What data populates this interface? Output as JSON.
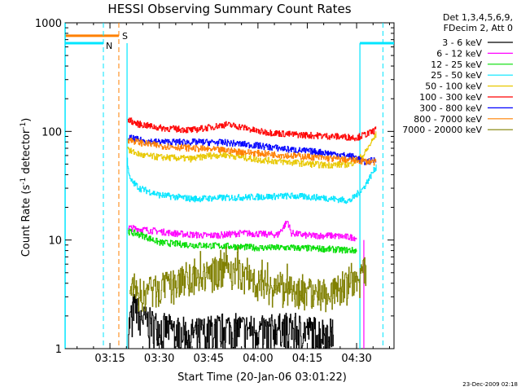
{
  "chart_data": {
    "type": "line",
    "title": "HESSI Observing Summary Count Rates",
    "xlabel": "Start Time (20-Jan-06 03:01:22)",
    "ylabel_main": "Count Rate (s",
    "ylabel_sup1": "-1",
    "ylabel_mid": " detector",
    "ylabel_sup2": "-1",
    "ylabel_end": ")",
    "x_ticks": [
      "03:15",
      "03:30",
      "03:45",
      "04:00",
      "04:15",
      "04:30"
    ],
    "x_tick_minutes": [
      15,
      30,
      45,
      60,
      75,
      90
    ],
    "x_range_minutes": [
      1.37,
      101.37
    ],
    "y_scale": "log",
    "y_range": [
      1,
      1000
    ],
    "y_ticks": [
      "1",
      "10",
      "100",
      "1000"
    ],
    "y_tick_values": [
      1,
      10,
      100,
      1000
    ],
    "legend_header": [
      "Det 1,3,4,5,6,9,",
      "FDecim 2, Att 0"
    ],
    "series": [
      {
        "name": "3 - 6 keV",
        "color": "#000000",
        "noisy": true,
        "points": [
          [
            20.5,
            1.5
          ],
          [
            22,
            2.5
          ],
          [
            25,
            1.9
          ],
          [
            30,
            1.6
          ],
          [
            40,
            1.4
          ],
          [
            50,
            1.6
          ],
          [
            60,
            1.5
          ],
          [
            70,
            1.6
          ],
          [
            75,
            1.5
          ],
          [
            83,
            1.4
          ]
        ]
      },
      {
        "name": "6 - 12 keV",
        "color": "#ff00ff",
        "points": [
          [
            20.5,
            13
          ],
          [
            25,
            12.5
          ],
          [
            30,
            12
          ],
          [
            35,
            11.5
          ],
          [
            40,
            11.2
          ],
          [
            45,
            11
          ],
          [
            50,
            11.2
          ],
          [
            55,
            11.6
          ],
          [
            60,
            11.4
          ],
          [
            66,
            11.2
          ],
          [
            69,
            15
          ],
          [
            70,
            11.6
          ],
          [
            75,
            11
          ],
          [
            82,
            11
          ],
          [
            90,
            10.5
          ]
        ]
      },
      {
        "name": "12 - 25 keV",
        "color": "#00dd00",
        "points": [
          [
            20.5,
            12
          ],
          [
            25,
            11
          ],
          [
            30,
            9.5
          ],
          [
            40,
            9
          ],
          [
            50,
            8.8
          ],
          [
            60,
            8.5
          ],
          [
            70,
            8.5
          ],
          [
            80,
            8.3
          ],
          [
            90,
            8
          ]
        ]
      },
      {
        "name": "25 - 50 keV",
        "color": "#00e5ff",
        "points": [
          [
            20.2,
            55
          ],
          [
            21,
            36
          ],
          [
            24,
            30
          ],
          [
            30,
            26
          ],
          [
            40,
            24
          ],
          [
            50,
            24.5
          ],
          [
            60,
            25
          ],
          [
            70,
            25.5
          ],
          [
            80,
            24.5
          ],
          [
            88,
            23
          ],
          [
            92,
            30
          ],
          [
            96,
            48
          ]
        ]
      },
      {
        "name": "50 - 100 keV",
        "color": "#e8c800",
        "points": [
          [
            20.3,
            75
          ],
          [
            21,
            66
          ],
          [
            25,
            60
          ],
          [
            30,
            58
          ],
          [
            40,
            56
          ],
          [
            45,
            60
          ],
          [
            50,
            61
          ],
          [
            55,
            58
          ],
          [
            60,
            55
          ],
          [
            70,
            52
          ],
          [
            80,
            49
          ],
          [
            88,
            50
          ],
          [
            92,
            60
          ],
          [
            96,
            95
          ]
        ]
      },
      {
        "name": "100 - 300 keV",
        "color": "#ff0000",
        "points": [
          [
            20.4,
            130
          ],
          [
            23,
            118
          ],
          [
            30,
            108
          ],
          [
            40,
            103
          ],
          [
            46,
            110
          ],
          [
            50,
            116
          ],
          [
            55,
            110
          ],
          [
            60,
            100
          ],
          [
            70,
            94
          ],
          [
            80,
            91
          ],
          [
            90,
            88
          ],
          [
            94,
            97
          ],
          [
            96,
            105
          ]
        ]
      },
      {
        "name": "300 - 800 keV",
        "color": "#0000ff",
        "points": [
          [
            20.4,
            88
          ],
          [
            25,
            82
          ],
          [
            30,
            80
          ],
          [
            40,
            80
          ],
          [
            50,
            79
          ],
          [
            60,
            74
          ],
          [
            70,
            68
          ],
          [
            80,
            64
          ],
          [
            90,
            58
          ],
          [
            92,
            52
          ],
          [
            96,
            55
          ]
        ]
      },
      {
        "name": "800 - 7000 keV",
        "color": "#ff8000",
        "points": [
          [
            20.4,
            84
          ],
          [
            25,
            78
          ],
          [
            30,
            74
          ],
          [
            40,
            70
          ],
          [
            50,
            67
          ],
          [
            60,
            63
          ],
          [
            70,
            60
          ],
          [
            80,
            57
          ],
          [
            90,
            54
          ],
          [
            96,
            52
          ]
        ]
      },
      {
        "name": "7000 - 20000 keV",
        "color": "#808000",
        "noisy": true,
        "points": [
          [
            21,
            3.5
          ],
          [
            25,
            3.2
          ],
          [
            30,
            3.6
          ],
          [
            38,
            4.2
          ],
          [
            45,
            4.8
          ],
          [
            50,
            5.8
          ],
          [
            55,
            4.8
          ],
          [
            60,
            4.2
          ],
          [
            65,
            3.6
          ],
          [
            70,
            3.4
          ],
          [
            80,
            3.2
          ],
          [
            90,
            4.0
          ],
          [
            93,
            5.6
          ]
        ]
      }
    ],
    "annotations": {
      "saa_label": "S",
      "saa_color": "#ff8000",
      "saa_range": [
        1.37,
        17.7
      ],
      "saa_level": 760,
      "night_label": "N",
      "night_color": "#00e5ff",
      "night_1_range": [
        1.37,
        13
      ],
      "night_2_range": [
        91,
        101.37
      ],
      "night_level": 650,
      "dashed_cyan_minutes": [
        13,
        98
      ],
      "dashed_orange_minutes": [
        17.7
      ],
      "solid_cyan_minutes": [
        20.2,
        91
      ],
      "solid_magenta_minutes": [
        92.2
      ]
    },
    "grid": false
  },
  "footer_date": "23-Dec-2009 02:18"
}
